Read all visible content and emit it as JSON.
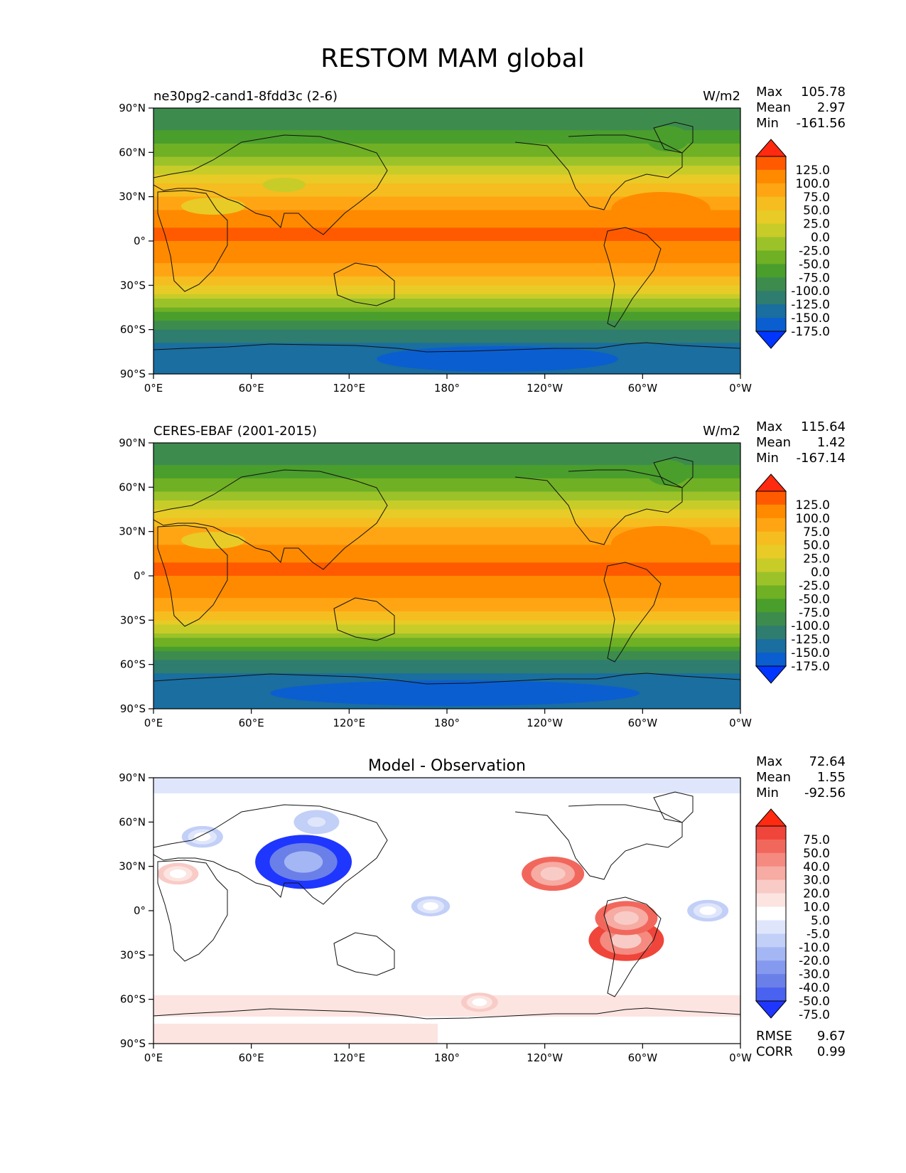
{
  "title": "RESTOM MAM global",
  "lat_ticks": [
    "90°N",
    "60°N",
    "30°N",
    "0°",
    "30°S",
    "60°S",
    "90°S"
  ],
  "lon_ticks": [
    "0°E",
    "60°E",
    "120°E",
    "180°",
    "120°W",
    "60°W",
    "0°W"
  ],
  "stat_labels": {
    "max": "Max",
    "mean": "Mean",
    "min": "Min",
    "rmse": "RMSE",
    "corr": "CORR"
  },
  "chart_data": [
    {
      "type": "heatmap",
      "panel": "model",
      "left_title": "ne30pg2-cand1-8fdd3c (2-6)",
      "units": "W/m2",
      "stats": {
        "max": "105.78",
        "mean": "2.97",
        "min": "-161.56"
      },
      "xlim": [
        0,
        360
      ],
      "ylim": [
        -90,
        90
      ],
      "colorbar": {
        "labels": [
          "125.0",
          "100.0",
          "75.0",
          "50.0",
          "25.0",
          "0.0",
          "-25.0",
          "-50.0",
          "-75.0",
          "-100.0",
          "-125.0",
          "-150.0",
          "-175.0"
        ],
        "colors": [
          "#ff2a10",
          "#ff5a00",
          "#ff8a00",
          "#ffa514",
          "#f5bd1f",
          "#e8cb26",
          "#c8cc28",
          "#9cc22a",
          "#6fb024",
          "#4a9e2c",
          "#3d8c4e",
          "#2e7d6e",
          "#1a6ea0",
          "#0a5ed0",
          "#0036ff"
        ]
      },
      "lat_profile": [
        {
          "lat": 90,
          "value": -110
        },
        {
          "lat": 75,
          "value": -100
        },
        {
          "lat": 65,
          "value": -75
        },
        {
          "lat": 55,
          "value": -40
        },
        {
          "lat": 45,
          "value": 0
        },
        {
          "lat": 35,
          "value": 40
        },
        {
          "lat": 20,
          "value": 75
        },
        {
          "lat": 10,
          "value": 100
        },
        {
          "lat": 0,
          "value": 100
        },
        {
          "lat": -10,
          "value": 95
        },
        {
          "lat": -20,
          "value": 60
        },
        {
          "lat": -30,
          "value": 25
        },
        {
          "lat": -40,
          "value": -25
        },
        {
          "lat": -50,
          "value": -90
        },
        {
          "lat": -60,
          "value": -130
        },
        {
          "lat": -70,
          "value": -150
        },
        {
          "lat": -80,
          "value": -170
        },
        {
          "lat": -90,
          "value": -160
        }
      ]
    },
    {
      "type": "heatmap",
      "panel": "observation",
      "left_title": "CERES-EBAF (2001-2015)",
      "units": "W/m2",
      "stats": {
        "max": "115.64",
        "mean": "1.42",
        "min": "-167.14"
      },
      "xlim": [
        0,
        360
      ],
      "ylim": [
        -90,
        90
      ],
      "colorbar": {
        "labels": [
          "125.0",
          "100.0",
          "75.0",
          "50.0",
          "25.0",
          "0.0",
          "-25.0",
          "-50.0",
          "-75.0",
          "-100.0",
          "-125.0",
          "-150.0",
          "-175.0"
        ],
        "colors": [
          "#ff2a10",
          "#ff5a00",
          "#ff8a00",
          "#ffa514",
          "#f5bd1f",
          "#e8cb26",
          "#c8cc28",
          "#9cc22a",
          "#6fb024",
          "#4a9e2c",
          "#3d8c4e",
          "#2e7d6e",
          "#1a6ea0",
          "#0a5ed0",
          "#0036ff"
        ]
      },
      "lat_profile": [
        {
          "lat": 90,
          "value": -110
        },
        {
          "lat": 75,
          "value": -100
        },
        {
          "lat": 65,
          "value": -70
        },
        {
          "lat": 55,
          "value": -40
        },
        {
          "lat": 45,
          "value": 0
        },
        {
          "lat": 35,
          "value": 45
        },
        {
          "lat": 20,
          "value": 80
        },
        {
          "lat": 10,
          "value": 100
        },
        {
          "lat": 0,
          "value": 100
        },
        {
          "lat": -10,
          "value": 90
        },
        {
          "lat": -20,
          "value": 60
        },
        {
          "lat": -30,
          "value": 20
        },
        {
          "lat": -40,
          "value": -30
        },
        {
          "lat": -50,
          "value": -95
        },
        {
          "lat": -60,
          "value": -140
        },
        {
          "lat": -70,
          "value": -160
        },
        {
          "lat": -80,
          "value": -175
        },
        {
          "lat": -90,
          "value": -160
        }
      ]
    },
    {
      "type": "heatmap",
      "panel": "difference",
      "center_title": "Model - Observation",
      "stats": {
        "max": "72.64",
        "mean": "1.55",
        "min": "-92.56"
      },
      "metrics": {
        "rmse": "9.67",
        "corr": "0.99"
      },
      "xlim": [
        0,
        360
      ],
      "ylim": [
        -90,
        90
      ],
      "colorbar": {
        "labels": [
          "75.0",
          "50.0",
          "40.0",
          "30.0",
          "20.0",
          "10.0",
          "5.0",
          "-5.0",
          "-10.0",
          "-20.0",
          "-30.0",
          "-40.0",
          "-50.0",
          "-75.0"
        ],
        "colors": [
          "#ff2a10",
          "#f0453a",
          "#f2675c",
          "#f48a80",
          "#f6aba3",
          "#f9cbc6",
          "#fce4e1",
          "#ffffff",
          "#dfe6fc",
          "#c2cff7",
          "#a4b6f4",
          "#8599ee",
          "#6a7fe8",
          "#4a62f0",
          "#1f36ff"
        ]
      },
      "anomalies": [
        {
          "lon": 92,
          "lat": 33,
          "value": -80
        },
        {
          "lon": 245,
          "lat": 25,
          "value": 40
        },
        {
          "lon": 290,
          "lat": -20,
          "value": 55
        },
        {
          "lon": 290,
          "lat": -5,
          "value": 40
        },
        {
          "lon": 100,
          "lat": 60,
          "value": -20
        },
        {
          "lon": 30,
          "lat": 50,
          "value": -15
        },
        {
          "lon": 15,
          "lat": 25,
          "value": 15
        },
        {
          "lon": 340,
          "lat": 0,
          "value": -15
        },
        {
          "lon": 170,
          "lat": 3,
          "value": -12
        },
        {
          "lon": 200,
          "lat": -62,
          "value": 10
        }
      ]
    }
  ]
}
